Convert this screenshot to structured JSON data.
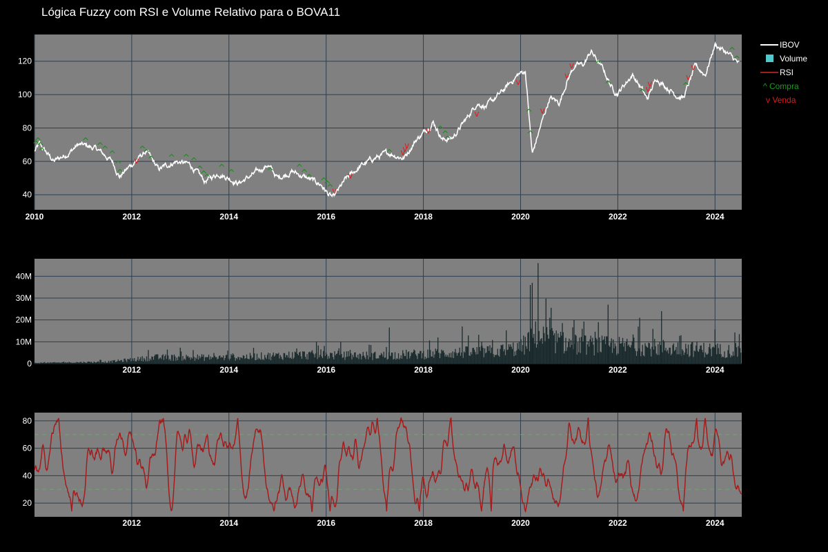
{
  "title": "Lógica Fuzzy com RSI e Volume Relativo para o BOVA11",
  "legend": [
    {
      "label": "IBOV",
      "kind": "line",
      "color": "#ffffff"
    },
    {
      "label": "Volume",
      "kind": "box",
      "color": "#4fc9cd"
    },
    {
      "label": "RSI",
      "kind": "line",
      "color": "#a51c1c"
    },
    {
      "label": "^ Compra",
      "kind": "text",
      "color": "#1b9e1b"
    },
    {
      "label": "v Venda",
      "kind": "text",
      "color": "#e31a1c"
    }
  ],
  "chart_data": [
    {
      "type": "line",
      "title": "IBOV",
      "series_name": "IBOV",
      "x_range": [
        2010.0,
        2024.55
      ],
      "ylim": [
        31,
        136
      ],
      "x_ticks": [
        "2010",
        "2012",
        "2014",
        "2016",
        "2018",
        "2020",
        "2022",
        "2024"
      ],
      "x_tick_values": [
        2010,
        2012,
        2014,
        2016,
        2018,
        2020,
        2022,
        2024
      ],
      "y_ticks": [
        40,
        60,
        80,
        100,
        120
      ],
      "key_points": [
        [
          2010.0,
          66
        ],
        [
          2010.1,
          70
        ],
        [
          2010.4,
          60
        ],
        [
          2010.7,
          65
        ],
        [
          2010.9,
          70
        ],
        [
          2011.1,
          69
        ],
        [
          2011.3,
          67
        ],
        [
          2011.6,
          60
        ],
        [
          2011.75,
          51
        ],
        [
          2012.0,
          58
        ],
        [
          2012.3,
          66
        ],
        [
          2012.55,
          55
        ],
        [
          2012.9,
          60
        ],
        [
          2013.2,
          58
        ],
        [
          2013.5,
          48
        ],
        [
          2013.8,
          53
        ],
        [
          2014.2,
          47
        ],
        [
          2014.5,
          52
        ],
        [
          2014.8,
          58
        ],
        [
          2015.0,
          50
        ],
        [
          2015.3,
          54
        ],
        [
          2015.6,
          50
        ],
        [
          2015.9,
          46
        ],
        [
          2016.05,
          40
        ],
        [
          2016.15,
          38
        ],
        [
          2016.4,
          49
        ],
        [
          2016.7,
          57
        ],
        [
          2017.0,
          62
        ],
        [
          2017.3,
          65
        ],
        [
          2017.6,
          62
        ],
        [
          2017.85,
          73
        ],
        [
          2018.0,
          77
        ],
        [
          2018.2,
          84
        ],
        [
          2018.4,
          73
        ],
        [
          2018.6,
          74
        ],
        [
          2018.9,
          86
        ],
        [
          2019.1,
          95
        ],
        [
          2019.3,
          93
        ],
        [
          2019.6,
          101
        ],
        [
          2019.95,
          112
        ],
        [
          2020.1,
          114
        ],
        [
          2020.18,
          85
        ],
        [
          2020.24,
          64
        ],
        [
          2020.4,
          80
        ],
        [
          2020.6,
          98
        ],
        [
          2020.8,
          95
        ],
        [
          2020.95,
          108
        ],
        [
          2021.1,
          117
        ],
        [
          2021.3,
          118
        ],
        [
          2021.45,
          126
        ],
        [
          2021.7,
          115
        ],
        [
          2021.9,
          103
        ],
        [
          2022.0,
          101
        ],
        [
          2022.3,
          112
        ],
        [
          2022.5,
          103
        ],
        [
          2022.6,
          97
        ],
        [
          2022.8,
          110
        ],
        [
          2022.95,
          106
        ],
        [
          2023.2,
          100
        ],
        [
          2023.35,
          98
        ],
        [
          2023.6,
          117
        ],
        [
          2023.8,
          112
        ],
        [
          2024.0,
          130
        ],
        [
          2024.2,
          126
        ],
        [
          2024.4,
          121
        ],
        [
          2024.5,
          118
        ]
      ],
      "buy_signals": [
        [
          2010.03,
          70
        ],
        [
          2010.07,
          72
        ],
        [
          2010.12,
          69
        ],
        [
          2010.15,
          66
        ],
        [
          2011.05,
          72
        ],
        [
          2011.35,
          69
        ],
        [
          2011.45,
          67
        ],
        [
          2011.6,
          64
        ],
        [
          2011.72,
          58
        ],
        [
          2011.76,
          53
        ],
        [
          2012.22,
          67
        ],
        [
          2012.3,
          65
        ],
        [
          2012.4,
          61
        ],
        [
          2012.82,
          62
        ],
        [
          2013.12,
          62
        ],
        [
          2013.28,
          60
        ],
        [
          2013.4,
          55
        ],
        [
          2013.48,
          52
        ],
        [
          2013.55,
          50
        ],
        [
          2013.85,
          56
        ],
        [
          2014.05,
          53
        ],
        [
          2014.85,
          54
        ],
        [
          2015.45,
          56
        ],
        [
          2015.55,
          53
        ],
        [
          2015.65,
          50
        ],
        [
          2015.95,
          48
        ],
        [
          2016.02,
          46
        ],
        [
          2016.08,
          44
        ],
        [
          2017.3,
          65
        ],
        [
          2018.35,
          79
        ],
        [
          2018.45,
          76
        ],
        [
          2018.5,
          73
        ],
        [
          2020.17,
          89
        ],
        [
          2020.2,
          76
        ],
        [
          2021.6,
          118
        ],
        [
          2021.8,
          106
        ],
        [
          2022.5,
          101
        ],
        [
          2023.4,
          105
        ],
        [
          2024.35,
          126
        ],
        [
          2024.45,
          121
        ]
      ],
      "sell_signals": [
        [
          2012.1,
          60
        ],
        [
          2016.17,
          42
        ],
        [
          2016.5,
          51
        ],
        [
          2017.58,
          65
        ],
        [
          2017.62,
          67
        ],
        [
          2017.66,
          69
        ],
        [
          2018.1,
          78
        ],
        [
          2019.1,
          88
        ],
        [
          2019.95,
          107
        ],
        [
          2020.45,
          90
        ],
        [
          2020.95,
          111
        ],
        [
          2021.05,
          117
        ],
        [
          2022.62,
          103
        ],
        [
          2022.66,
          106
        ],
        [
          2023.45,
          110
        ],
        [
          2023.55,
          116
        ]
      ]
    },
    {
      "type": "bar",
      "title": "Volume",
      "series_name": "Volume",
      "x_range": [
        2010.0,
        2024.55
      ],
      "ylim": [
        0,
        48000000
      ],
      "x_ticks": [
        "2012",
        "2014",
        "2016",
        "2018",
        "2020",
        "2022",
        "2024"
      ],
      "x_tick_values": [
        2012,
        2014,
        2016,
        2018,
        2020,
        2022,
        2024
      ],
      "y_ticks": [
        "0",
        "10M",
        "20M",
        "30M",
        "40M"
      ],
      "y_tick_values": [
        0,
        10000000,
        20000000,
        30000000,
        40000000
      ],
      "baseline_profile": [
        [
          2010.0,
          0.4
        ],
        [
          2011.5,
          1.0
        ],
        [
          2012.5,
          3.5
        ],
        [
          2014.0,
          3.5
        ],
        [
          2015.5,
          5.0
        ],
        [
          2017.0,
          4.5
        ],
        [
          2018.5,
          6.0
        ],
        [
          2019.5,
          7.0
        ],
        [
          2020.0,
          9.0
        ],
        [
          2020.3,
          16.0
        ],
        [
          2021.0,
          11.0
        ],
        [
          2022.0,
          10.0
        ],
        [
          2023.0,
          9.0
        ],
        [
          2024.55,
          7.0
        ]
      ],
      "spikes_millions": [
        [
          2015.8,
          10
        ],
        [
          2016.3,
          10
        ],
        [
          2017.3,
          16.5
        ],
        [
          2018.3,
          12
        ],
        [
          2018.8,
          17
        ],
        [
          2019.2,
          10
        ],
        [
          2020.2,
          36
        ],
        [
          2020.24,
          37
        ],
        [
          2020.36,
          46
        ],
        [
          2020.6,
          21
        ],
        [
          2021.1,
          20
        ],
        [
          2021.6,
          19
        ],
        [
          2021.8,
          27
        ],
        [
          2022.45,
          21
        ],
        [
          2022.9,
          24
        ],
        [
          2023.3,
          13
        ],
        [
          2024.5,
          13.5
        ]
      ]
    },
    {
      "type": "line",
      "title": "RSI",
      "series_name": "RSI",
      "x_range": [
        2010.0,
        2024.55
      ],
      "ylim": [
        10,
        86
      ],
      "x_ticks": [
        "2012",
        "2014",
        "2016",
        "2018",
        "2020",
        "2022",
        "2024"
      ],
      "x_tick_values": [
        2012,
        2014,
        2016,
        2018,
        2020,
        2022,
        2024
      ],
      "y_ticks": [
        20,
        40,
        60,
        80
      ],
      "reference_lines": [
        30,
        70
      ],
      "range_min": 14,
      "range_max": 82
    }
  ]
}
